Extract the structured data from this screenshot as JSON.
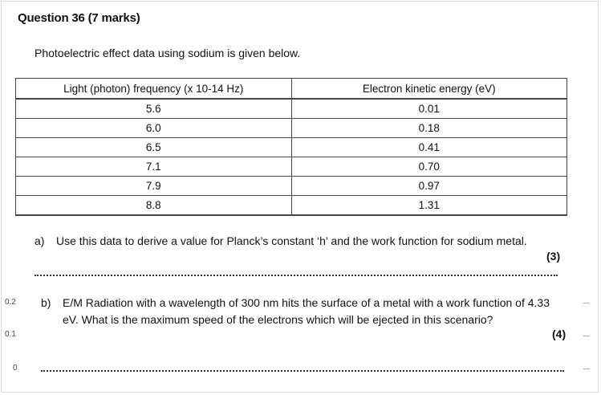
{
  "question": {
    "title": "Question 36 (7 marks)",
    "intro": "Photoelectric effect data using sodium is given below."
  },
  "table": {
    "headers": [
      "Light (photon) frequency (x 10-14 Hz)",
      "Electron kinetic energy (eV)"
    ],
    "rows": [
      [
        "5.6",
        "0.01"
      ],
      [
        "6.0",
        "0.18"
      ],
      [
        "6.5",
        "0.41"
      ],
      [
        "7.1",
        "0.70"
      ],
      [
        "7.9",
        "0.97"
      ],
      [
        "8.8",
        "1.31"
      ]
    ]
  },
  "part_a": {
    "letter": "a)",
    "text": "Use this data to derive a value for Planck’s constant ‘h’ and the work function for sodium metal.",
    "marks": "(3)"
  },
  "part_b": {
    "letter": "b)",
    "text": "E/M Radiation with a wavelength of 300 nm hits the surface of a metal with a work function of 4.33 eV. What is the maximum speed of the electrons which will be ejected in this scenario?",
    "marks": "(4)"
  },
  "side_axis": [
    "0.2",
    "0.1",
    "0"
  ]
}
